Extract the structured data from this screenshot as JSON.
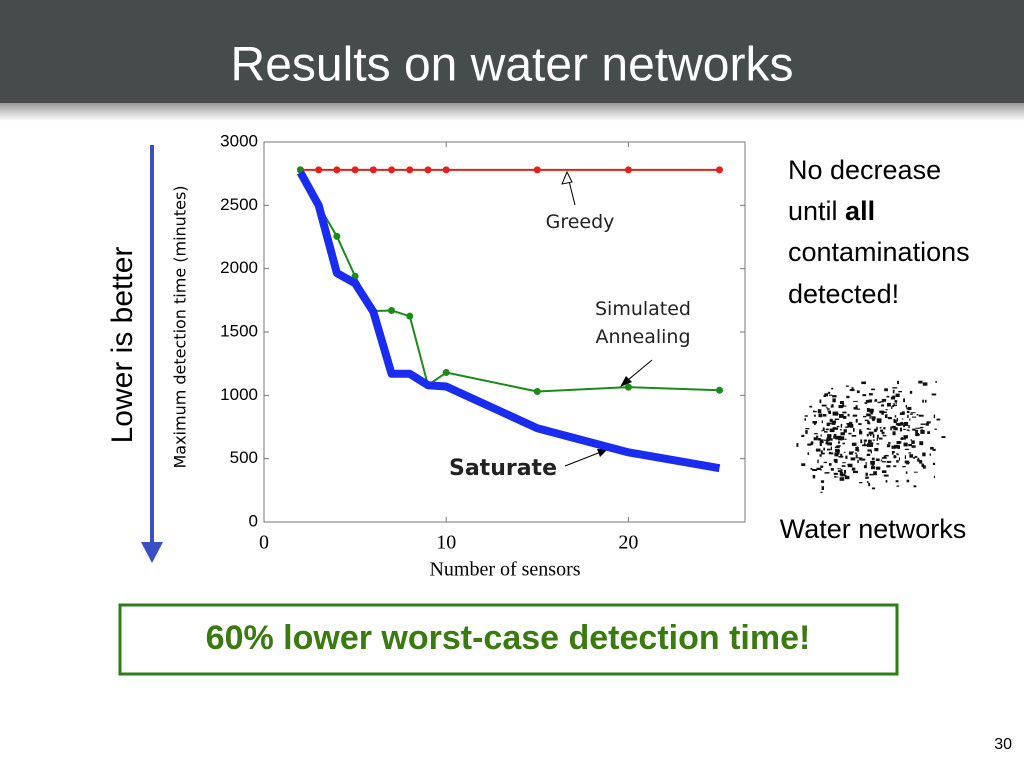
{
  "title": "Results on water networks",
  "side_label": "Lower is better",
  "note": {
    "line1": "No decrease",
    "line2a": "until",
    "line2b": "all",
    "line3": "contaminations",
    "line4": "detected!"
  },
  "figure_caption": "Water networks",
  "callout": "60% lower worst-case detection time!",
  "page_number": "30",
  "chart_data": {
    "type": "line",
    "xlabel": "Number of sensors",
    "ylabel": "Maximum detection time (minutes)",
    "x": [
      2,
      3,
      4,
      5,
      6,
      7,
      8,
      9,
      10,
      15,
      20,
      25
    ],
    "xlim": [
      0,
      26.4
    ],
    "xticks": [
      0,
      10,
      20
    ],
    "ylim": [
      0,
      3000
    ],
    "yticks": [
      0,
      500,
      1000,
      1500,
      2000,
      2500,
      3000
    ],
    "series": [
      {
        "name": "Greedy",
        "color": "#e3201c",
        "linewidth": 2,
        "markers": true,
        "values": [
          2780,
          2780,
          2780,
          2780,
          2780,
          2780,
          2780,
          2780,
          2780,
          2780,
          2780,
          2780
        ]
      },
      {
        "name": "Simulated Annealing",
        "color": "#1a8a1a",
        "linewidth": 2,
        "markers": true,
        "values": [
          2780,
          2500,
          2255,
          1940,
          1665,
          1670,
          1625,
          1080,
          1180,
          1030,
          1065,
          1040
        ]
      },
      {
        "name": "Saturate",
        "color": "#1a2cf0",
        "linewidth": 8,
        "markers": false,
        "values": [
          2760,
          2500,
          1965,
          1885,
          1660,
          1170,
          1170,
          1080,
          1070,
          740,
          550,
          425
        ]
      }
    ]
  }
}
